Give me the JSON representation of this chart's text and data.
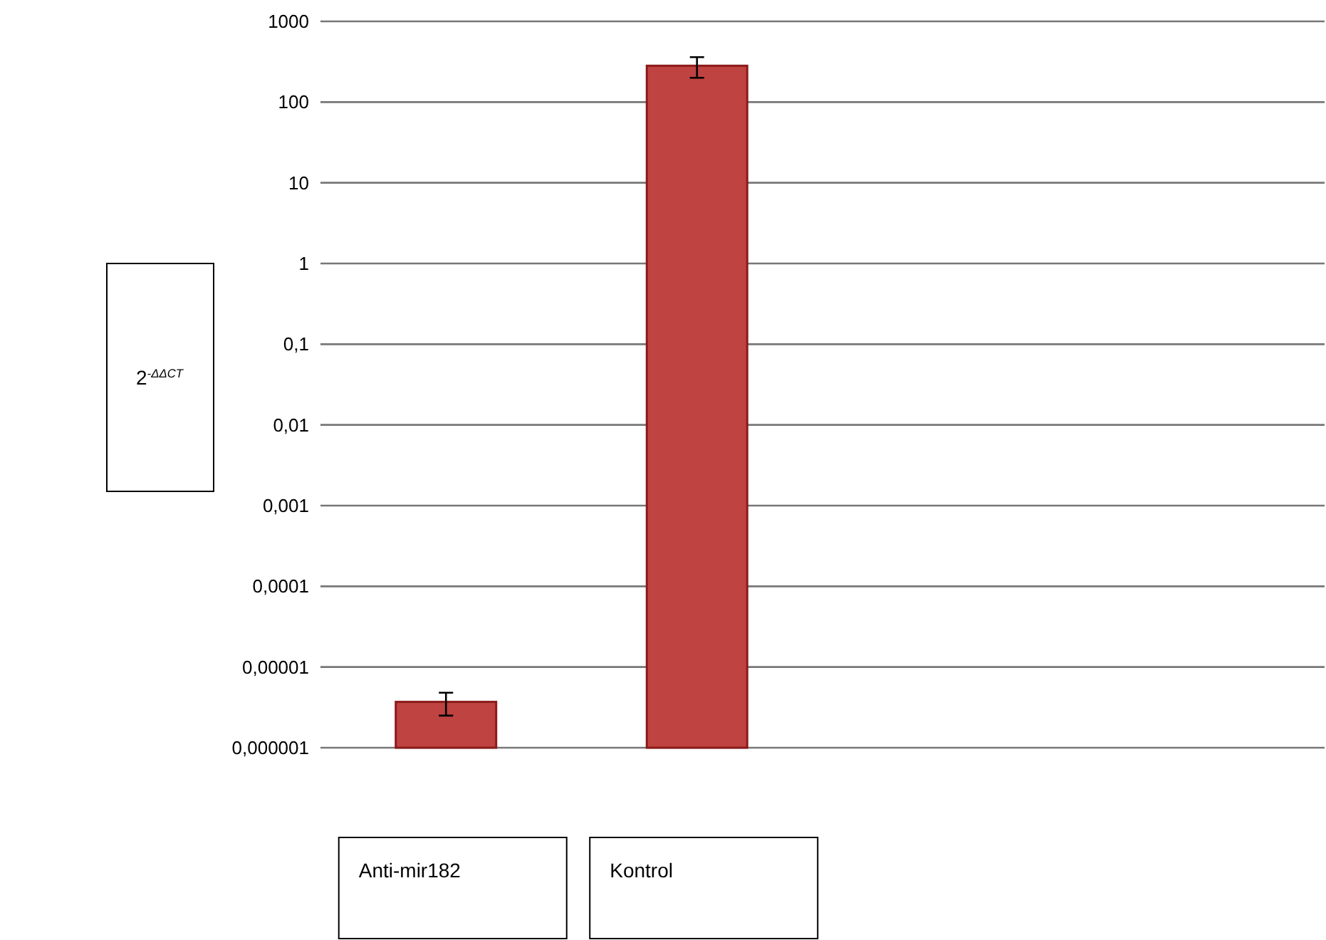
{
  "chart_data": {
    "type": "bar",
    "ylabel": "2$^{-ΔΔCT}$",
    "categories": [
      "Anti-mir182",
      "Kontrol",
      null,
      null
    ],
    "values": [
      3.7e-06,
      282,
      null,
      null
    ],
    "color": "#be4341",
    "errors": [
      [
        2.5e-06,
        4.8e-06
      ],
      [
        200,
        360
      ],
      null,
      null
    ],
    "log": true,
    "ylim": [
      1e-06,
      1000
    ],
    "yticks": [
      {
        "value": 1e-06,
        "label": "0,000001"
      },
      {
        "value": 1e-05,
        "label": "0,00001"
      },
      {
        "value": 0.0001,
        "label": "0,0001"
      },
      {
        "value": 0.001,
        "label": "0,001"
      },
      {
        "value": 0.01,
        "label": "0,01"
      },
      {
        "value": 0.1,
        "label": "0,1"
      },
      1,
      10,
      100,
      1000
    ],
    "grid": "y"
  }
}
